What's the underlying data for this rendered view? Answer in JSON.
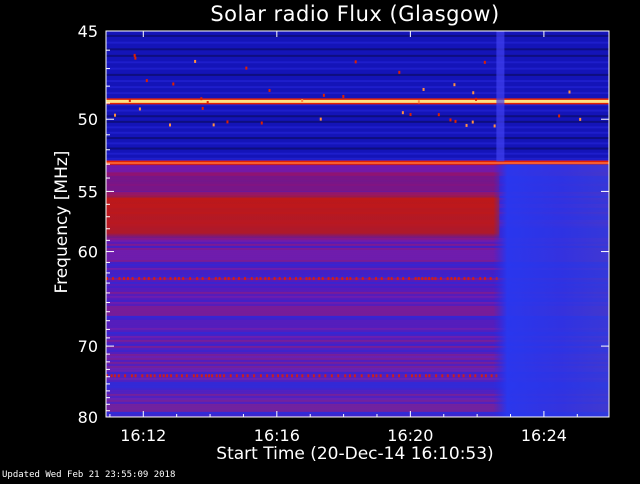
{
  "chart_data": {
    "type": "heatmap",
    "title": "Solar radio Flux (Glasgow)",
    "xlabel": "Start Time (20-Dec-14 16:10:53)",
    "ylabel": "Frequency [MHz]",
    "x_ticks": [
      "16:12",
      "16:16",
      "16:20",
      "16:24"
    ],
    "x_tick_minutes": [
      12,
      16,
      20,
      24
    ],
    "xlim_minutes": [
      10.883,
      25.95
    ],
    "y_ticks": [
      45,
      50,
      55,
      60,
      70,
      80
    ],
    "ylim": [
      45,
      80
    ],
    "y_scale": "reciprocal",
    "colormap": [
      "#0a0a30",
      "#1010c0",
      "#3a2ad8",
      "#8a1ac0",
      "#c01050",
      "#e02000",
      "#ffe080"
    ],
    "features": [
      {
        "kind": "continuous band",
        "freq_mhz": 48.9,
        "intensity": "saturated"
      },
      {
        "kind": "continuous band",
        "freq_mhz": 52.9,
        "intensity": "high"
      },
      {
        "kind": "broad emission",
        "freq_mhz_range": [
          55,
          59
        ],
        "intensity": "high"
      },
      {
        "kind": "interference line",
        "freq_mhz": 62.5,
        "intensity": "medium"
      },
      {
        "kind": "interference line",
        "freq_mhz": 73.8,
        "intensity": "medium"
      },
      {
        "kind": "broadband event",
        "time": "16:22:40",
        "intensity": "low"
      }
    ]
  },
  "footer": "Updated Wed Feb 21 23:55:09 2018"
}
